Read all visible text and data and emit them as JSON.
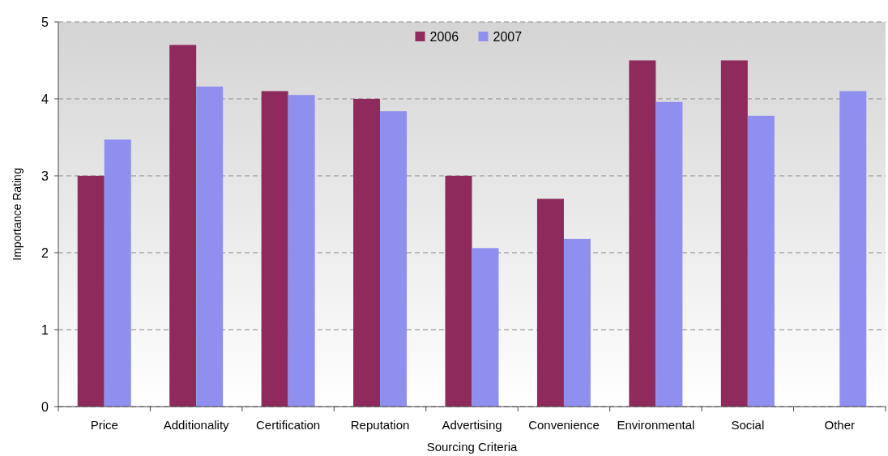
{
  "chart_data": {
    "type": "bar",
    "xlabel": "Sourcing Criteria",
    "ylabel": "Importance Rating",
    "categories": [
      "Price",
      "Additionality",
      "Certification",
      "Reputation",
      "Advertising",
      "Convenience",
      "Environmental",
      "Social",
      "Other"
    ],
    "series": [
      {
        "name": "2006",
        "color": "#8e2a5c",
        "values": [
          3.0,
          4.7,
          4.1,
          4.0,
          3.0,
          2.7,
          4.5,
          4.5,
          null
        ]
      },
      {
        "name": "2007",
        "color": "#8f8ff0",
        "values": [
          3.47,
          4.16,
          4.05,
          3.84,
          2.06,
          2.18,
          3.96,
          3.78,
          4.1
        ]
      }
    ],
    "ylim": [
      0,
      5
    ],
    "yticks": [
      0,
      1,
      2,
      3,
      4,
      5
    ],
    "grid": "y",
    "legend": "top"
  }
}
